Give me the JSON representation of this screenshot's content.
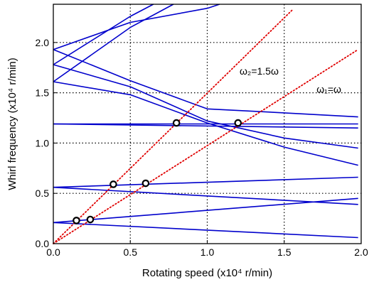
{
  "chart_data": {
    "type": "line",
    "xlabel": "Rotating speed (x10⁴ r/min)",
    "ylabel": "Whirl frequency (x10⁴ r/min)",
    "xlim": [
      0,
      2.0
    ],
    "ylim": [
      0,
      2.38
    ],
    "x_ticks": [
      "0.0",
      "0.5",
      "1.0",
      "1.5",
      "2.0"
    ],
    "y_ticks": [
      "0.0",
      "0.5",
      "1.0",
      "1.5",
      "2.0"
    ],
    "grid": true,
    "series": [
      {
        "style": "solid",
        "color": "#0000cc",
        "points": [
          [
            0,
            0.21
          ],
          [
            1.98,
            0.06
          ]
        ]
      },
      {
        "style": "solid",
        "color": "#0000cc",
        "points": [
          [
            0,
            0.21
          ],
          [
            1.98,
            0.45
          ]
        ]
      },
      {
        "style": "solid",
        "color": "#0000cc",
        "points": [
          [
            0,
            0.56
          ],
          [
            1.98,
            0.39
          ]
        ]
      },
      {
        "style": "solid",
        "color": "#0000cc",
        "points": [
          [
            0,
            0.56
          ],
          [
            1.98,
            0.66
          ]
        ]
      },
      {
        "style": "solid",
        "color": "#0000cc",
        "points": [
          [
            0,
            1.19
          ],
          [
            1.98,
            1.19
          ]
        ]
      },
      {
        "style": "solid",
        "color": "#0000cc",
        "points": [
          [
            0,
            1.19
          ],
          [
            1.98,
            1.15
          ]
        ]
      },
      {
        "style": "solid",
        "color": "#0000cc",
        "points": [
          [
            0,
            1.61
          ],
          [
            0.5,
            1.48
          ],
          [
            1.0,
            1.2
          ],
          [
            1.5,
            0.96
          ],
          [
            1.98,
            0.78
          ]
        ]
      },
      {
        "style": "solid",
        "color": "#0000cc",
        "points": [
          [
            0,
            1.78
          ],
          [
            0.5,
            1.56
          ],
          [
            1.0,
            1.22
          ],
          [
            1.5,
            1.05
          ],
          [
            1.98,
            0.95
          ]
        ]
      },
      {
        "style": "solid",
        "color": "#0000cc",
        "points": [
          [
            0,
            1.93
          ],
          [
            0.5,
            1.62
          ],
          [
            1.0,
            1.34
          ],
          [
            1.5,
            1.3
          ],
          [
            1.98,
            1.26
          ]
        ]
      },
      {
        "style": "solid",
        "color": "#0000cc",
        "points": [
          [
            0,
            1.61
          ],
          [
            0.5,
            2.15
          ],
          [
            0.78,
            2.38
          ]
        ]
      },
      {
        "style": "solid",
        "color": "#0000cc",
        "points": [
          [
            0,
            1.78
          ],
          [
            0.5,
            2.26
          ],
          [
            0.65,
            2.38
          ]
        ]
      },
      {
        "style": "solid",
        "color": "#0000cc",
        "points": [
          [
            0,
            1.93
          ],
          [
            0.5,
            2.2
          ],
          [
            1.0,
            2.34
          ],
          [
            1.08,
            2.38
          ]
        ]
      },
      {
        "style": "dotted",
        "color": "#e00000",
        "points": [
          [
            0,
            0
          ],
          [
            1.55,
            2.32
          ]
        ]
      },
      {
        "style": "dotted",
        "color": "#e00000",
        "points": [
          [
            0,
            0
          ],
          [
            1.98,
            1.93
          ]
        ]
      }
    ],
    "markers": [
      {
        "x": 0.15,
        "y": 0.23
      },
      {
        "x": 0.24,
        "y": 0.24
      },
      {
        "x": 0.39,
        "y": 0.59
      },
      {
        "x": 0.6,
        "y": 0.6
      },
      {
        "x": 0.8,
        "y": 1.2
      },
      {
        "x": 1.2,
        "y": 1.2
      }
    ],
    "annotations": [
      {
        "text": "ω₂=1.5ω",
        "x": 1.21,
        "y": 1.68
      },
      {
        "text": "ω₁=ω",
        "x": 1.71,
        "y": 1.5
      }
    ]
  }
}
